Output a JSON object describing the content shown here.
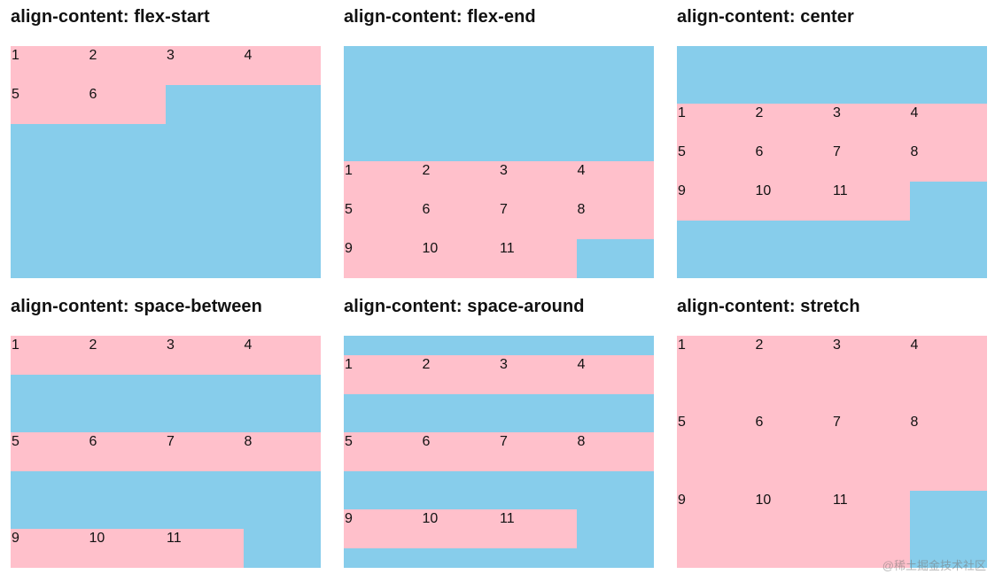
{
  "colors": {
    "container_bg": "#87CDEB",
    "item_bg": "#FFC0CB",
    "text": "#111111"
  },
  "panels": [
    {
      "title": "align-content: flex-start",
      "align_content": "flex-start",
      "items": [
        "1",
        "2",
        "3",
        "4",
        "5",
        "6"
      ]
    },
    {
      "title": "align-content: flex-end",
      "align_content": "flex-end",
      "items": [
        "1",
        "2",
        "3",
        "4",
        "5",
        "6",
        "7",
        "8",
        "9",
        "10",
        "11"
      ]
    },
    {
      "title": "align-content: center",
      "align_content": "center",
      "items": [
        "1",
        "2",
        "3",
        "4",
        "5",
        "6",
        "7",
        "8",
        "9",
        "10",
        "11"
      ]
    },
    {
      "title": "align-content: space-between",
      "align_content": "space-between",
      "items": [
        "1",
        "2",
        "3",
        "4",
        "5",
        "6",
        "7",
        "8",
        "9",
        "10",
        "11"
      ]
    },
    {
      "title": "align-content: space-around",
      "align_content": "space-around",
      "items": [
        "1",
        "2",
        "3",
        "4",
        "5",
        "6",
        "7",
        "8",
        "9",
        "10",
        "11"
      ]
    },
    {
      "title": "align-content: stretch",
      "align_content": "stretch",
      "items": [
        "1",
        "2",
        "3",
        "4",
        "5",
        "6",
        "7",
        "8",
        "9",
        "10",
        "11"
      ]
    }
  ],
  "watermark": "@稀土掘金技术社区"
}
